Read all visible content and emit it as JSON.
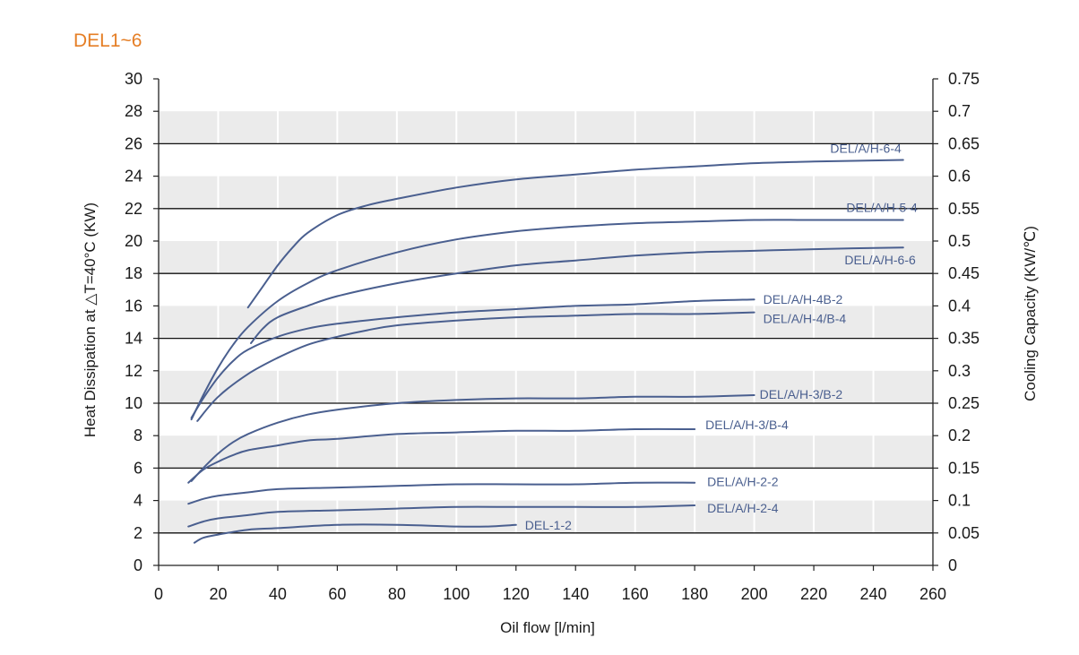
{
  "chart_data": {
    "type": "line",
    "title": "DEL1~6",
    "xlabel": "Oil flow [l/min]",
    "ylabel": "Heat Dissipation at  △T=40°C (KW)",
    "y2label": "Cooling Capacity (KW/℃)",
    "xlim": [
      0,
      260
    ],
    "ylim": [
      0,
      30
    ],
    "y2lim": [
      0,
      0.75
    ],
    "x_ticks": [
      "0",
      "20",
      "40",
      "60",
      "80",
      "100",
      "120",
      "140",
      "160",
      "180",
      "200",
      "220",
      "240",
      "260"
    ],
    "y_ticks": [
      "0",
      "2",
      "4",
      "6",
      "8",
      "10",
      "12",
      "14",
      "16",
      "18",
      "20",
      "22",
      "24",
      "26",
      "28",
      "30"
    ],
    "y2_ticks": [
      "0",
      "0.05",
      "0.1",
      "0.15",
      "0.2",
      "0.25",
      "0.3",
      "0.35",
      "0.4",
      "0.45",
      "0.5",
      "0.55",
      "0.6",
      "0.65",
      "0.7",
      "0.75"
    ],
    "grid": "horizontal bands, major lines every 4 KW",
    "series_color": "#4a5f8f",
    "title_color": "#e57e25",
    "band_color": "#ebebeb",
    "series": [
      {
        "name": "DEL/A/H-6-4",
        "x": [
          30,
          35,
          40,
          45,
          50,
          60,
          70,
          80,
          100,
          120,
          140,
          160,
          180,
          200,
          220,
          250
        ],
        "y": [
          15.9,
          17.2,
          18.5,
          19.6,
          20.5,
          21.6,
          22.2,
          22.6,
          23.3,
          23.8,
          24.1,
          24.4,
          24.6,
          24.8,
          24.9,
          25.0
        ]
      },
      {
        "name": "DEL/A/H-5-4",
        "x": [
          11,
          15,
          20,
          25,
          30,
          40,
          50,
          60,
          80,
          100,
          120,
          140,
          160,
          180,
          200,
          220,
          250
        ],
        "y": [
          9.0,
          10.5,
          12.2,
          13.6,
          14.7,
          16.3,
          17.4,
          18.2,
          19.3,
          20.1,
          20.6,
          20.9,
          21.1,
          21.2,
          21.3,
          21.3,
          21.3
        ]
      },
      {
        "name": "DEL/A/H-6-6",
        "x": [
          31,
          35,
          40,
          50,
          60,
          80,
          100,
          120,
          140,
          160,
          180,
          200,
          220,
          250
        ],
        "y": [
          13.7,
          14.6,
          15.3,
          16.0,
          16.6,
          17.4,
          18.0,
          18.5,
          18.8,
          19.1,
          19.3,
          19.4,
          19.5,
          19.6
        ]
      },
      {
        "name": "DEL/A/H-4B-2",
        "x": [
          11,
          15,
          20,
          25,
          30,
          40,
          50,
          60,
          80,
          100,
          120,
          140,
          160,
          180,
          200
        ],
        "y": [
          9.1,
          10.3,
          11.6,
          12.6,
          13.3,
          14.1,
          14.6,
          14.9,
          15.3,
          15.6,
          15.8,
          16.0,
          16.1,
          16.3,
          16.4
        ]
      },
      {
        "name": "DEL/A/H-4/B-4",
        "x": [
          13,
          20,
          30,
          40,
          50,
          60,
          70,
          80,
          100,
          120,
          140,
          160,
          180,
          200
        ],
        "y": [
          8.9,
          10.4,
          11.8,
          12.8,
          13.6,
          14.1,
          14.5,
          14.8,
          15.1,
          15.3,
          15.4,
          15.5,
          15.5,
          15.6
        ]
      },
      {
        "name": "DEL/A/H-3/B-2",
        "x": [
          11,
          15,
          20,
          25,
          30,
          40,
          50,
          60,
          80,
          100,
          120,
          140,
          160,
          180,
          200
        ],
        "y": [
          5.2,
          6.0,
          6.9,
          7.6,
          8.1,
          8.8,
          9.3,
          9.6,
          10.0,
          10.2,
          10.3,
          10.3,
          10.4,
          10.4,
          10.5
        ]
      },
      {
        "name": "DEL/A/H-3/B-4",
        "x": [
          10,
          15,
          20,
          25,
          30,
          40,
          50,
          60,
          80,
          100,
          120,
          140,
          160,
          180
        ],
        "y": [
          5.1,
          5.9,
          6.4,
          6.8,
          7.1,
          7.4,
          7.7,
          7.8,
          8.1,
          8.2,
          8.3,
          8.3,
          8.4,
          8.4
        ]
      },
      {
        "name": "DEL/A/H-2-2",
        "x": [
          10,
          15,
          20,
          30,
          40,
          60,
          80,
          100,
          120,
          140,
          160,
          180
        ],
        "y": [
          3.8,
          4.1,
          4.3,
          4.5,
          4.7,
          4.8,
          4.9,
          5.0,
          5.0,
          5.0,
          5.1,
          5.1
        ]
      },
      {
        "name": "DEL/A/H-2-4",
        "x": [
          10,
          15,
          20,
          30,
          40,
          60,
          80,
          100,
          120,
          140,
          160,
          180
        ],
        "y": [
          2.4,
          2.7,
          2.9,
          3.1,
          3.3,
          3.4,
          3.5,
          3.6,
          3.6,
          3.6,
          3.6,
          3.7
        ]
      },
      {
        "name": "DEL-1-2",
        "x": [
          12,
          15,
          20,
          30,
          40,
          60,
          80,
          100,
          110,
          120
        ],
        "y": [
          1.4,
          1.7,
          1.9,
          2.2,
          2.3,
          2.5,
          2.5,
          2.4,
          2.4,
          2.5
        ]
      }
    ]
  }
}
